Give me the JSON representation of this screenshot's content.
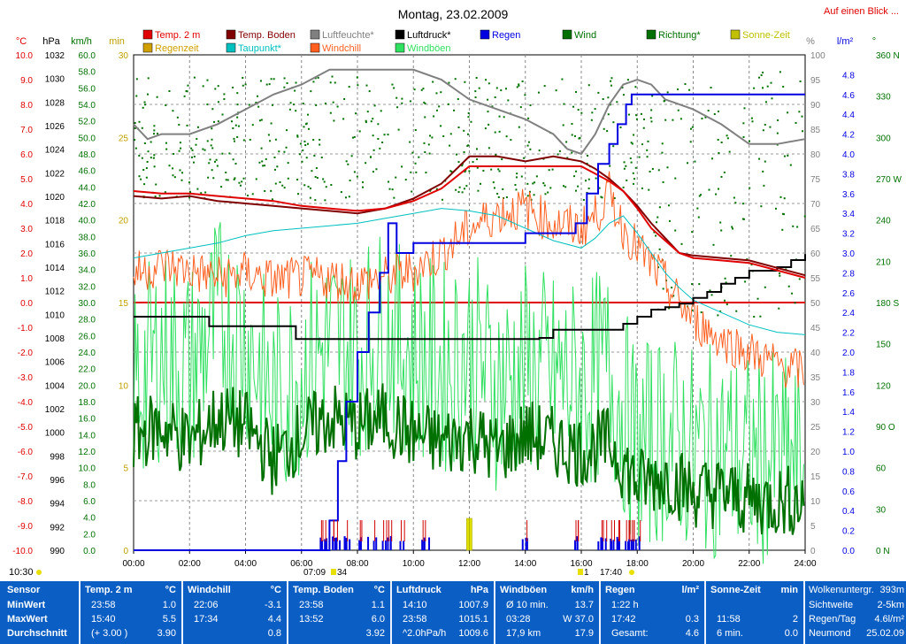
{
  "title": "Montag, 23.02.2009",
  "link": "Auf einen Blick ...",
  "legend": [
    {
      "label": "Temp. 2 m",
      "color": "#e00000"
    },
    {
      "label": "Temp. Boden",
      "color": "#800000"
    },
    {
      "label": "Luftfeuchte*",
      "color": "#808080"
    },
    {
      "label": "Luftdruck*",
      "color": "#000000"
    },
    {
      "label": "Regen",
      "color": "#0000e0"
    },
    {
      "label": "Wind",
      "color": "#007000"
    },
    {
      "label": "Richtung*",
      "color": "#007000"
    },
    {
      "label": "Sonne-Zeit",
      "color": "#c0c000"
    },
    {
      "label": "Regenzeit",
      "color": "#d0a000"
    },
    {
      "label": "Taupunkt*",
      "color": "#00c0c0"
    },
    {
      "label": "Windchill",
      "color": "#ff6020"
    },
    {
      "label": "Windböen",
      "color": "#30e060"
    }
  ],
  "axis_units": {
    "temp": "°C",
    "pressure": "hPa",
    "wind": "km/h",
    "minutes": "min",
    "humidity": "%",
    "rain": "l/m²",
    "direction": "°"
  },
  "time_markers": {
    "left": "10:30",
    "sunrise": "07:09",
    "sunrise_suffix": "34",
    "sunset": "17:40",
    "sunset_prefix": "1"
  },
  "chart_data": {
    "type": "line",
    "x_ticks": [
      "00:00",
      "02:00",
      "04:00",
      "06:00",
      "08:00",
      "10:00",
      "12:00",
      "14:00",
      "16:00",
      "18:00",
      "20:00",
      "22:00",
      "24:00"
    ],
    "axes": {
      "temp": {
        "range": [
          -10,
          10
        ],
        "step": 1.0,
        "ticks": [
          "-10.0",
          "-9.0",
          "-8.0",
          "-7.0",
          "-6.0",
          "-5.0",
          "-4.0",
          "-3.0",
          "-2.0",
          "-1.0",
          "0.0",
          "1.0",
          "2.0",
          "3.0",
          "4.0",
          "5.0",
          "6.0",
          "7.0",
          "8.0",
          "9.0",
          "10.0"
        ]
      },
      "pressure": {
        "range": [
          990,
          1032
        ],
        "ticks": [
          "990",
          "992",
          "994",
          "996",
          "998",
          "1000",
          "1002",
          "1004",
          "1006",
          "1008",
          "1010",
          "1012",
          "1014",
          "1016",
          "1018",
          "1020",
          "1022",
          "1024",
          "1026",
          "1028",
          "1030",
          "1032"
        ]
      },
      "wind": {
        "range": [
          0,
          60
        ],
        "ticks": [
          "0.0",
          "2.0",
          "4.0",
          "6.0",
          "8.0",
          "10.0",
          "12.0",
          "14.0",
          "16.0",
          "18.0",
          "20.0",
          "22.0",
          "24.0",
          "26.0",
          "28.0",
          "30.0",
          "32.0",
          "34.0",
          "36.0",
          "38.0",
          "40.0",
          "42.0",
          "44.0",
          "46.0",
          "48.0",
          "50.0",
          "52.0",
          "54.0",
          "56.0",
          "58.0",
          "60.0"
        ]
      },
      "minutes": {
        "range": [
          0,
          30
        ],
        "ticks": [
          "0",
          "5",
          "10",
          "15",
          "20",
          "25",
          "30"
        ]
      },
      "humidity": {
        "range": [
          0,
          100
        ],
        "ticks": [
          "0",
          "5",
          "10",
          "15",
          "20",
          "25",
          "30",
          "35",
          "40",
          "45",
          "50",
          "55",
          "60",
          "65",
          "70",
          "75",
          "80",
          "85",
          "90",
          "95",
          "100"
        ]
      },
      "rain": {
        "range": [
          0,
          5
        ],
        "ticks": [
          "0.0",
          "0.2",
          "0.4",
          "0.6",
          "0.8",
          "1.0",
          "1.2",
          "1.4",
          "1.6",
          "1.8",
          "2.0",
          "2.2",
          "2.4",
          "2.6",
          "2.8",
          "3.0",
          "3.2",
          "3.4",
          "3.6",
          "3.8",
          "4.0",
          "4.2",
          "4.4",
          "4.6",
          "4.8"
        ]
      },
      "direction": {
        "range": [
          0,
          360
        ],
        "ticks": [
          "0 N",
          "30",
          "60",
          "90 O",
          "120",
          "150",
          "180 S",
          "210",
          "240",
          "270 W",
          "300",
          "330",
          "360 N"
        ]
      }
    },
    "series": [
      {
        "name": "Temp. 2 m",
        "axis": "temp",
        "color": "#e00000",
        "x": [
          0,
          1,
          2,
          3,
          4,
          5,
          6,
          7,
          8,
          9,
          10,
          11,
          12,
          13,
          14,
          15,
          16,
          16.5,
          17,
          17.5,
          18,
          18.5,
          19,
          19.5,
          20,
          21,
          22,
          23,
          24
        ],
        "y": [
          4.5,
          4.4,
          4.4,
          4.3,
          4.2,
          4.1,
          3.9,
          3.8,
          3.7,
          3.8,
          4.1,
          4.6,
          5.5,
          5.5,
          5.5,
          5.5,
          5.5,
          5.2,
          4.9,
          4.5,
          3.8,
          3.0,
          2.5,
          2.0,
          1.8,
          1.7,
          1.6,
          1.3,
          1.0
        ]
      },
      {
        "name": "Temp. Boden",
        "axis": "temp",
        "color": "#800000",
        "x": [
          0,
          1,
          2,
          3,
          4,
          5,
          6,
          7,
          8,
          9,
          10,
          11,
          12,
          13,
          14,
          15,
          16,
          16.5,
          17,
          17.5,
          18,
          18.5,
          19,
          19.5,
          20,
          21,
          22,
          23,
          24
        ],
        "y": [
          4.3,
          4.2,
          4.3,
          4.1,
          4.0,
          3.9,
          3.8,
          3.7,
          3.6,
          3.8,
          4.2,
          4.8,
          5.9,
          5.9,
          5.7,
          5.9,
          5.7,
          5.4,
          5.0,
          4.5,
          3.9,
          3.2,
          2.6,
          2.0,
          1.9,
          1.8,
          1.7,
          1.4,
          1.1
        ]
      },
      {
        "name": "Luftfeuchte*",
        "axis": "humidity",
        "color": "#808080",
        "x": [
          0,
          0.5,
          1,
          2,
          3,
          4,
          5,
          6,
          7,
          8,
          9,
          10,
          11,
          12,
          13,
          14,
          15,
          15.5,
          16,
          16.5,
          17,
          17.5,
          18,
          18.5,
          19,
          20,
          21,
          22,
          23,
          24
        ],
        "y": [
          86,
          83,
          84,
          84,
          86,
          89,
          92,
          94,
          97,
          97,
          97,
          97,
          95,
          91,
          89,
          87,
          84,
          81,
          80,
          84,
          90,
          94,
          95,
          94,
          91,
          89,
          86,
          82,
          82,
          83
        ]
      },
      {
        "name": "Luftdruck*",
        "axis": "pressure",
        "color": "#000000",
        "x": [
          0,
          2.5,
          2.7,
          5.5,
          5.8,
          9,
          11,
          14,
          14.5,
          15,
          16,
          17,
          17.5,
          18,
          18.5,
          19,
          19.5,
          20,
          20.5,
          21,
          21.5,
          22,
          22.5,
          23,
          23.5,
          24
        ],
        "y": [
          1009.8,
          1009.8,
          1009,
          1009,
          1007.9,
          1007.9,
          1007.9,
          1007.9,
          1008.0,
          1008.7,
          1008.7,
          1008.7,
          1009.2,
          1009.8,
          1010.4,
          1010.6,
          1010.9,
          1011.4,
          1011.9,
          1012.6,
          1013.1,
          1013.7,
          1013.7,
          1014.0,
          1014.6,
          1015.1
        ]
      },
      {
        "name": "Regen",
        "axis": "rain",
        "color": "#0000e0",
        "x": [
          0,
          6.5,
          7,
          7.3,
          7.6,
          8,
          8.4,
          8.8,
          9.1,
          9.4,
          10,
          10.5,
          12,
          13.5,
          14,
          15,
          15.8,
          16.2,
          16.6,
          17,
          17.3,
          17.6,
          17.8,
          18,
          24
        ],
        "y": [
          0,
          0,
          0.3,
          0.9,
          1.5,
          2.0,
          2.4,
          2.8,
          3.3,
          3.0,
          3.1,
          3.1,
          3.1,
          3.1,
          3.2,
          3.2,
          3.3,
          3.6,
          3.9,
          4.1,
          4.3,
          4.5,
          4.6,
          4.6,
          4.6
        ]
      },
      {
        "name": "Taupunkt*",
        "axis": "temp",
        "color": "#00c0c0",
        "x": [
          0,
          1,
          2,
          3,
          4,
          5,
          6,
          7,
          8,
          9,
          10,
          11,
          12,
          13,
          14,
          15,
          16,
          16.5,
          17,
          17.5,
          18,
          18.5,
          19,
          19.5,
          20,
          21,
          22,
          23,
          24
        ],
        "y": [
          1.8,
          2.0,
          2.2,
          2.4,
          2.7,
          2.9,
          3.0,
          3.1,
          3.2,
          3.4,
          3.6,
          3.8,
          3.7,
          3.5,
          3.0,
          2.5,
          2.2,
          2.6,
          3.2,
          3.5,
          2.8,
          2.0,
          1.2,
          0.6,
          0.1,
          -0.4,
          -0.9,
          -1.2,
          -1.3
        ]
      },
      {
        "name": "Windchill",
        "axis": "temp",
        "color": "#ff6020",
        "x": [
          0,
          1,
          2,
          3,
          4,
          5,
          6,
          7,
          8,
          9,
          10,
          11,
          12,
          13,
          14,
          15,
          16,
          16.5,
          17,
          17.5,
          18,
          18.5,
          19,
          19.5,
          20,
          21,
          22,
          23,
          24
        ],
        "y": [
          1.2,
          1.5,
          1.3,
          1.0,
          1.2,
          0.9,
          1.0,
          1.0,
          0.8,
          1.0,
          1.3,
          2.0,
          3.0,
          3.6,
          3.8,
          3.2,
          3.0,
          3.5,
          4.4,
          3.0,
          2.2,
          1.5,
          0.8,
          0,
          -0.7,
          -1.5,
          -2.0,
          -2.5,
          -2.8
        ]
      },
      {
        "name": "Windböen",
        "axis": "wind",
        "color": "#30e060",
        "x": [
          0,
          1,
          2,
          3,
          4,
          5,
          6,
          7,
          8,
          9,
          10,
          11,
          12,
          13,
          14,
          15,
          16,
          17,
          18,
          19,
          20,
          21,
          22,
          23,
          24
        ],
        "y": [
          20,
          24,
          22,
          28,
          26,
          18,
          22,
          25,
          24,
          27,
          24,
          22,
          24,
          20,
          22,
          21,
          20,
          22,
          12,
          14,
          12,
          12,
          11,
          11,
          10
        ]
      },
      {
        "name": "Wind",
        "axis": "wind",
        "color": "#007000",
        "x": [
          0,
          1,
          2,
          3,
          4,
          5,
          6,
          7,
          8,
          9,
          10,
          11,
          12,
          13,
          14,
          15,
          16,
          17,
          18,
          19,
          20,
          21,
          22,
          23,
          24
        ],
        "y": [
          14,
          15,
          13,
          16,
          15,
          11,
          14,
          16,
          15,
          16,
          14,
          13,
          14,
          12,
          14,
          13,
          12,
          13,
          8,
          9,
          7,
          7,
          6,
          6,
          6
        ]
      }
    ],
    "zero_line_temp": 0.0,
    "legend_position": "top"
  },
  "stats": {
    "row_labels": [
      "Sensor",
      "MinWert",
      "MaxWert",
      "Durchschnitt"
    ],
    "blocks": [
      {
        "name": "Temp. 2 m",
        "unit": "°C",
        "rows": [
          [
            "23:58",
            "1.0"
          ],
          [
            "15:40",
            "5.5"
          ],
          [
            "(+ 3.00 )",
            "3.90"
          ]
        ]
      },
      {
        "name": "Windchill",
        "unit": "°C",
        "rows": [
          [
            "22:06",
            "-3.1"
          ],
          [
            "17:34",
            "4.4"
          ],
          [
            "",
            "0.8"
          ]
        ]
      },
      {
        "name": "Temp. Boden",
        "unit": "°C",
        "rows": [
          [
            "23:58",
            "1.1"
          ],
          [
            "13:52",
            "6.0"
          ],
          [
            "",
            "3.92"
          ]
        ]
      },
      {
        "name": "Luftdruck",
        "unit": "hPa",
        "rows": [
          [
            "14:10",
            "1007.9"
          ],
          [
            "23:58",
            "1015.1"
          ],
          [
            "^2.0hPa/h",
            "1009.6"
          ]
        ]
      },
      {
        "name": "Windböen",
        "unit": "km/h",
        "rows": [
          [
            "Ø 10 min.",
            "13.7"
          ],
          [
            "03:28",
            "W 37.0"
          ],
          [
            "17,9 km",
            "17.9"
          ]
        ]
      },
      {
        "name": "Regen",
        "unit": "l/m²",
        "rows": [
          [
            "1:22 h",
            ""
          ],
          [
            "17:42",
            "0.3"
          ],
          [
            "Gesamt:",
            "4.6"
          ]
        ]
      },
      {
        "name": "Sonne-Zeit",
        "unit": "min",
        "rows": [
          [
            "",
            ""
          ],
          [
            "11:58",
            "2"
          ],
          [
            "6 min.",
            "0.0"
          ]
        ]
      }
    ],
    "extra": [
      [
        "Wolkenuntergr.",
        "393m"
      ],
      [
        "Sichtweite",
        "2-5km"
      ],
      [
        "Regen/Tag",
        "4.6l/m²"
      ],
      [
        "Neumond",
        "25.02.09"
      ]
    ]
  }
}
